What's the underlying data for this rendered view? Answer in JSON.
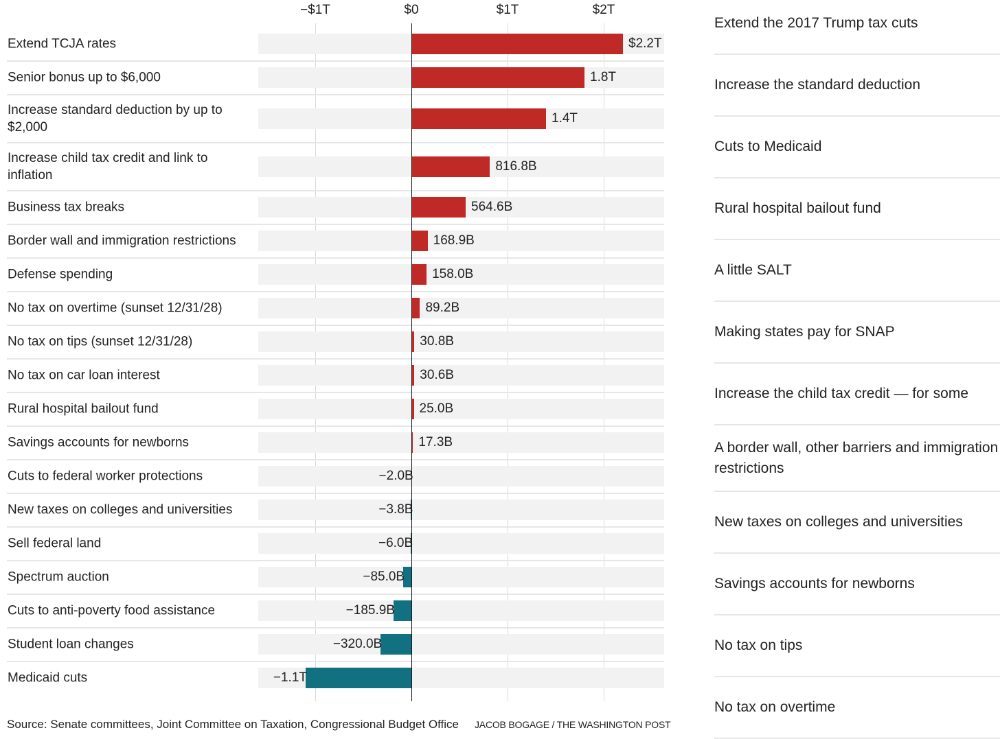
{
  "chart_data": {
    "type": "bar",
    "orientation": "horizontal",
    "units": "USD",
    "xlim": [
      -1.6,
      2.63
    ],
    "x_ticks": [
      {
        "value": -1,
        "label": "−$1T"
      },
      {
        "value": 0,
        "label": "$0"
      },
      {
        "value": 1,
        "label": "$1T"
      },
      {
        "value": 2,
        "label": "$2T"
      }
    ],
    "grid": true,
    "categories": [
      "Extend TCJA rates",
      "Senior bonus up to $6,000",
      "Increase standard deduction by up to $2,000",
      "Increase child tax credit and link to inflation",
      "Business tax breaks",
      "Border wall and immigration restrictions",
      "Defense spending",
      "No tax on overtime (sunset 12/31/28)",
      "No tax on tips (sunset 12/31/28)",
      "No tax on car loan interest",
      "Rural hospital bailout fund",
      "Savings accounts for newborns",
      "Cuts to federal worker protections",
      "New taxes on colleges and universities",
      "Sell federal land",
      "Spectrum auction",
      "Cuts to anti-poverty food assistance",
      "Student loan changes",
      "Medicaid cuts"
    ],
    "values_trillions": [
      2.2,
      1.8,
      1.4,
      0.8168,
      0.5646,
      0.1689,
      0.158,
      0.0892,
      0.0308,
      0.0306,
      0.025,
      0.0173,
      -0.002,
      -0.0038,
      -0.006,
      -0.085,
      -0.1859,
      -0.32,
      -1.1
    ],
    "value_labels": [
      "$2.2T",
      "1.8T",
      "1.4T",
      "816.8B",
      "564.6B",
      "168.9B",
      "158.0B",
      "89.2B",
      "30.8B",
      "30.6B",
      "25.0B",
      "17.3B",
      "−2.0B",
      "−3.8B",
      "−6.0B",
      "−85.0B",
      "−185.9B",
      "−320.0B",
      "−1.1T"
    ],
    "colors": {
      "positive": "#bf2a26",
      "negative": "#127180"
    },
    "source": "Source: Senate committees, Joint Committee on Taxation, Congressional Budget Office",
    "credit": "JACOB BOGAGE / THE WASHINGTON POST"
  },
  "sidebar": {
    "items": [
      "Extend the 2017 Trump tax cuts",
      "Increase the standard deduction",
      "Cuts to Medicaid",
      "Rural hospital bailout fund",
      "A little SALT",
      "Making states pay for SNAP",
      "Increase the child tax credit — for some",
      "A border wall, other barriers and immigration restrictions",
      "New taxes on colleges and universities",
      "Savings accounts for newborns",
      "No tax on tips",
      "No tax on overtime"
    ]
  }
}
